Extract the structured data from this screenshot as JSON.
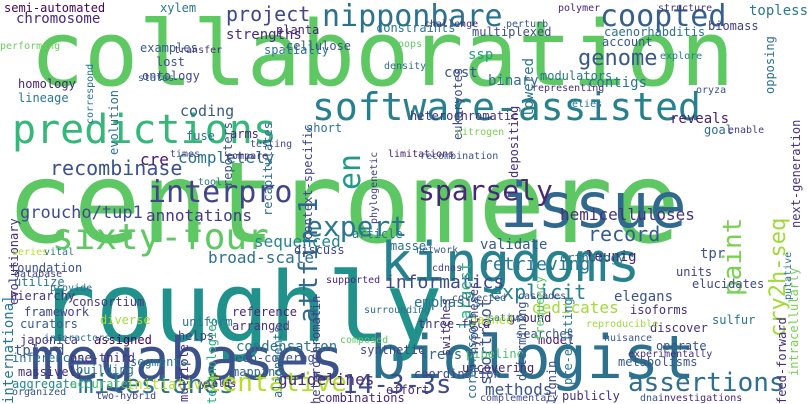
{
  "words": [
    {
      "text": "centromere",
      "color": "#5dc863"
    },
    {
      "text": "collaboration",
      "color": "#5ec962"
    },
    {
      "text": "roughly",
      "color": "#21918c"
    },
    {
      "text": "megabases",
      "color": "#3b528b"
    },
    {
      "text": "biologist",
      "color": "#2c728e"
    },
    {
      "text": "kingdoms",
      "color": "#26828e"
    },
    {
      "text": "issue",
      "color": "#31688e"
    },
    {
      "text": "predictions",
      "color": "#35b779"
    },
    {
      "text": "software-assisted",
      "color": "#27808e"
    },
    {
      "text": "sixty-four",
      "color": "#5ec962"
    },
    {
      "text": "nipponbare",
      "color": "#2c718e"
    },
    {
      "text": "coopted",
      "color": "#355f8d"
    },
    {
      "text": "expert",
      "color": "#2a788e"
    },
    {
      "text": "interpro",
      "color": "#414487"
    },
    {
      "text": "sparsely",
      "color": "#482878"
    },
    {
      "text": "cry2h-seq",
      "color": "#a0da39"
    },
    {
      "text": "attfin-1",
      "color": "#30698e"
    },
    {
      "text": "milestones",
      "color": "#2c728e"
    },
    {
      "text": "tentative",
      "color": "#b5de2b"
    },
    {
      "text": "14-3-3s",
      "color": "#3e4a89"
    },
    {
      "text": "assertions",
      "color": "#2e6f8e"
    },
    {
      "text": "recombinase",
      "color": "#3b528b"
    },
    {
      "text": "genome",
      "color": "#38588c"
    },
    {
      "text": "project",
      "color": "#3f4788"
    },
    {
      "text": "groucho/tup1",
      "color": "#3e4c8a"
    },
    {
      "text": "paint",
      "color": "#7ad151"
    },
    {
      "text": "informatics",
      "color": "#3e4989"
    },
    {
      "text": "explicit",
      "color": "#26818e"
    },
    {
      "text": "record",
      "color": "#365c8d"
    },
    {
      "text": "retrieving",
      "color": "#2a778e"
    },
    {
      "text": "methods",
      "color": "#3b528b"
    },
    {
      "text": "guidelines",
      "color": "#472c7a"
    },
    {
      "text": "dedicates",
      "color": "#a2da37"
    },
    {
      "text": "shortroot",
      "color": "#3a548c"
    },
    {
      "text": "hemicelluloses",
      "color": "#46317e"
    },
    {
      "text": "sequenced",
      "color": "#25858e"
    },
    {
      "text": "annotations",
      "color": "#443983"
    },
    {
      "text": "largest",
      "color": "#27ad81"
    },
    {
      "text": "en",
      "color": "#1f9a8a"
    },
    {
      "text": "cre",
      "color": "#48186a"
    },
    {
      "text": "completely",
      "color": "#2d718e"
    },
    {
      "text": "coding",
      "color": "#38588c"
    },
    {
      "text": "strengths",
      "color": "#472d7b"
    },
    {
      "text": "chromosome",
      "color": "#472a7a"
    },
    {
      "text": "semi-automated",
      "color": "#450457"
    },
    {
      "text": "homology",
      "color": "#482576"
    },
    {
      "text": "lineage",
      "color": "#2a788e"
    },
    {
      "text": "foundation",
      "color": "#3b528b"
    },
    {
      "text": "utilize",
      "color": "#29798e"
    },
    {
      "text": "hierarchy",
      "color": "#46327e"
    },
    {
      "text": "consortium",
      "color": "#453882"
    },
    {
      "text": "framework",
      "color": "#414487"
    },
    {
      "text": "curators",
      "color": "#38588c"
    },
    {
      "text": "japonica",
      "color": "#46337f"
    },
    {
      "text": "tpl-rd",
      "color": "#3a548c"
    },
    {
      "text": "international",
      "color": "#2a788e"
    },
    {
      "text": "inferences",
      "color": "#2d708e"
    },
    {
      "text": "massively",
      "color": "#46307e"
    },
    {
      "text": "aggregate",
      "color": "#24878e"
    },
    {
      "text": "one-third",
      "color": "#472f7d"
    },
    {
      "text": "building",
      "color": "#2c728e"
    },
    {
      "text": "accurate",
      "color": "#4ac16d"
    },
    {
      "text": "initiative",
      "color": "#bddf26"
    },
    {
      "text": "diverse",
      "color": "#a5db36"
    },
    {
      "text": "assigned",
      "color": "#440154"
    },
    {
      "text": "broad-scale",
      "color": "#2c718e"
    },
    {
      "text": "condensation",
      "color": "#2b758e"
    },
    {
      "text": "trees",
      "color": "#2f6c8e"
    },
    {
      "text": "three-fold",
      "color": "#472f7d"
    },
    {
      "text": "combinations",
      "color": "#482677"
    },
    {
      "text": "pipeline",
      "color": "#4ac16d"
    },
    {
      "text": "emphasis",
      "color": "#2c728e"
    },
    {
      "text": "validate",
      "color": "#38598c"
    },
    {
      "text": "leunig",
      "color": "#482374"
    },
    {
      "text": "elegans",
      "color": "#3b528b"
    },
    {
      "text": "orthology",
      "color": "#2c738e"
    },
    {
      "text": "tpr",
      "color": "#3b528b"
    },
    {
      "text": "units",
      "color": "#414487"
    },
    {
      "text": "elucidates",
      "color": "#3f4889"
    },
    {
      "text": "multiplexed",
      "color": "#3e4c8a"
    },
    {
      "text": "ssp",
      "color": "#1f9e89"
    },
    {
      "text": "cost",
      "color": "#3a548c"
    },
    {
      "text": "lowered",
      "color": "#2a768e"
    },
    {
      "text": "binary",
      "color": "#2f6c8e"
    },
    {
      "text": "contigs",
      "color": "#2c738e"
    },
    {
      "text": "topless",
      "color": "#2a788e"
    },
    {
      "text": "feed-forward",
      "color": "#472d7b"
    },
    {
      "text": "intracellularly",
      "color": "#77d153"
    },
    {
      "text": "next-generation",
      "color": "#46337f"
    },
    {
      "text": "reveals",
      "color": "#482173"
    },
    {
      "text": "heterochromatic",
      "color": "#453581"
    },
    {
      "text": "heterochromatin",
      "color": "#433e85"
    },
    {
      "text": "synthetic",
      "color": "#3f4788"
    },
    {
      "text": "reference",
      "color": "#482878"
    },
    {
      "text": "arranged",
      "color": "#46337f"
    },
    {
      "text": "deep-coverage",
      "color": "#3b528b"
    },
    {
      "text": "mapping",
      "color": "#32658e"
    },
    {
      "text": "alignments",
      "color": "#2d708e"
    },
    {
      "text": "helps",
      "color": "#433e85"
    },
    {
      "text": "uniform",
      "color": "#2a778e"
    },
    {
      "text": "multiple",
      "color": "#46337f"
    },
    {
      "text": "segments",
      "color": "#2a768e"
    },
    {
      "text": "technologies",
      "color": "#25ac82"
    },
    {
      "text": "model",
      "color": "#481b6d"
    },
    {
      "text": "ground",
      "color": "#482173"
    },
    {
      "text": "searches",
      "color": "#3a548c"
    },
    {
      "text": "gained",
      "color": "#bddf26"
    },
    {
      "text": "discover",
      "color": "#472f7d"
    },
    {
      "text": "operate",
      "color": "#3b528b"
    },
    {
      "text": "sulfur",
      "color": "#2c728e"
    },
    {
      "text": "isoforms",
      "color": "#46307e"
    },
    {
      "text": "metabolisms",
      "color": "#38588c"
    },
    {
      "text": "investigations",
      "color": "#482878"
    },
    {
      "text": "lignin",
      "color": "#3e4a89"
    },
    {
      "text": "effort",
      "color": "#472a7a"
    },
    {
      "text": "coordination",
      "color": "#3f4788"
    },
    {
      "text": "uncovering",
      "color": "#482677"
    },
    {
      "text": "publicly",
      "color": "#46307e"
    },
    {
      "text": "complementary",
      "color": "#3e4a89"
    },
    {
      "text": "yields",
      "color": "#482878"
    },
    {
      "text": "two-hybrid",
      "color": "#433e85"
    },
    {
      "text": "organized",
      "color": "#3b528b"
    },
    {
      "text": "database",
      "color": "#404588"
    },
    {
      "text": "provide",
      "color": "#2f6c8e"
    },
    {
      "text": "interactors",
      "color": "#2d708e"
    },
    {
      "text": "evolutionary",
      "color": "#46317e"
    },
    {
      "text": "performing",
      "color": "#6ccd5a"
    },
    {
      "text": "correspond",
      "color": "#2a768e"
    },
    {
      "text": "evolution",
      "color": "#2c728e"
    },
    {
      "text": "ontology",
      "color": "#3e4a89"
    },
    {
      "text": "examples",
      "color": "#365d8d"
    },
    {
      "text": "xylem",
      "color": "#2a788e"
    },
    {
      "text": "planta",
      "color": "#482475"
    },
    {
      "text": "cellulose",
      "color": "#3a538b"
    },
    {
      "text": "transfer",
      "color": "#46317e"
    },
    {
      "text": "reporters",
      "color": "#3b528b"
    },
    {
      "text": "recapitulates",
      "color": "#2f6c8e"
    },
    {
      "text": "context-specific",
      "color": "#3f4788"
    },
    {
      "text": "spatially",
      "color": "#2c728e"
    },
    {
      "text": "status",
      "color": "#365d8d"
    },
    {
      "text": "arms",
      "color": "#482878"
    },
    {
      "text": "testing",
      "color": "#3e4a89"
    },
    {
      "text": "phylogenetic",
      "color": "#433e85"
    },
    {
      "text": "density",
      "color": "#2f6c8e"
    },
    {
      "text": "lost",
      "color": "#3b528b"
    },
    {
      "text": "loops",
      "color": "#5ec962"
    },
    {
      "text": "constraints",
      "color": "#2a788e"
    },
    {
      "text": "challenge",
      "color": "#46317e"
    },
    {
      "text": "perturb",
      "color": "#38588c"
    },
    {
      "text": "eukaryotes",
      "color": "#3f4788"
    },
    {
      "text": "polymer",
      "color": "#482677"
    },
    {
      "text": "caenorhabditis",
      "color": "#2c718e"
    },
    {
      "text": "biomass",
      "color": "#433e85"
    },
    {
      "text": "structure",
      "color": "#46337f"
    },
    {
      "text": "opposing",
      "color": "#2d708e"
    },
    {
      "text": "account",
      "color": "#38588c"
    },
    {
      "text": "depositing",
      "color": "#472d7b"
    },
    {
      "text": "modulators",
      "color": "#2a768e"
    },
    {
      "text": "representing",
      "color": "#46317e"
    },
    {
      "text": "relies",
      "color": "#2c728e"
    },
    {
      "text": "oryza",
      "color": "#3b528b"
    },
    {
      "text": "goal",
      "color": "#2f6c8e"
    },
    {
      "text": "enable",
      "color": "#433e85"
    },
    {
      "text": "explore",
      "color": "#2a788e"
    },
    {
      "text": "fuse",
      "color": "#2c718e"
    },
    {
      "text": "times",
      "color": "#3e4a89"
    },
    {
      "text": "compare",
      "color": "#46317e"
    },
    {
      "text": "tool",
      "color": "#2a788e"
    },
    {
      "text": "short",
      "color": "#2c728e"
    },
    {
      "text": "limitations",
      "color": "#482173"
    },
    {
      "text": "recombination",
      "color": "#3b528b"
    },
    {
      "text": "nitrogen",
      "color": "#7ad151"
    },
    {
      "text": "article",
      "color": "#2a768e"
    },
    {
      "text": "masse",
      "color": "#2c718e"
    },
    {
      "text": "discuss",
      "color": "#3f4788"
    },
    {
      "text": "network",
      "color": "#38588c"
    },
    {
      "text": "switches",
      "color": "#46307e"
    },
    {
      "text": "hypotheses",
      "color": "#433e85"
    },
    {
      "text": "corepressors",
      "color": "#2c718e"
    },
    {
      "text": "determining",
      "color": "#3b528b"
    },
    {
      "text": "frequency",
      "color": "#5ec962"
    },
    {
      "text": "pre-existing",
      "color": "#2a788e"
    },
    {
      "text": "series",
      "color": "#b5de2b"
    },
    {
      "text": "vital",
      "color": "#2a788e"
    },
    {
      "text": "supported",
      "color": "#482878"
    },
    {
      "text": "collected",
      "color": "#3b528b"
    },
    {
      "text": "cdnas",
      "color": "#433e85"
    },
    {
      "text": "surrounding",
      "color": "#2c718e"
    },
    {
      "text": "composed",
      "color": "#5ec962"
    },
    {
      "text": "sativa",
      "color": "#2a788e"
    },
    {
      "text": "reproducible",
      "color": "#a0da39"
    },
    {
      "text": "cascades",
      "color": "#3e4a89"
    },
    {
      "text": "nuisance",
      "color": "#38588c"
    },
    {
      "text": "experimentally",
      "color": "#46317e"
    },
    {
      "text": "putative",
      "color": "#2c718e"
    },
    {
      "text": "dna",
      "color": "#3b528b"
    }
  ]
}
